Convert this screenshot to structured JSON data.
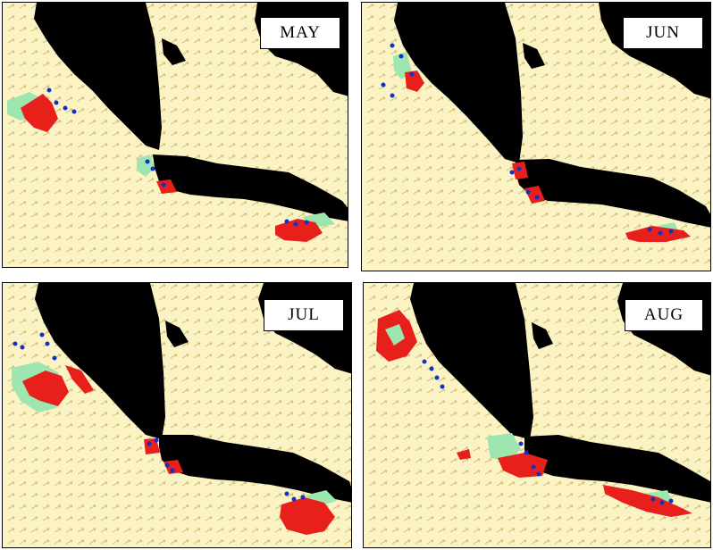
{
  "panels": [
    {
      "id": "may",
      "label": "MAY"
    },
    {
      "id": "jun",
      "label": "JUN"
    },
    {
      "id": "jul",
      "label": "JUL"
    },
    {
      "id": "aug",
      "label": "AUG"
    }
  ],
  "colors": {
    "sea": "#fbf3c4",
    "land": "#000000",
    "arrows": "#c9b870",
    "zone_red": "#e8201c",
    "zone_green": "#9ee6b0",
    "points_blue": "#1030c8"
  }
}
